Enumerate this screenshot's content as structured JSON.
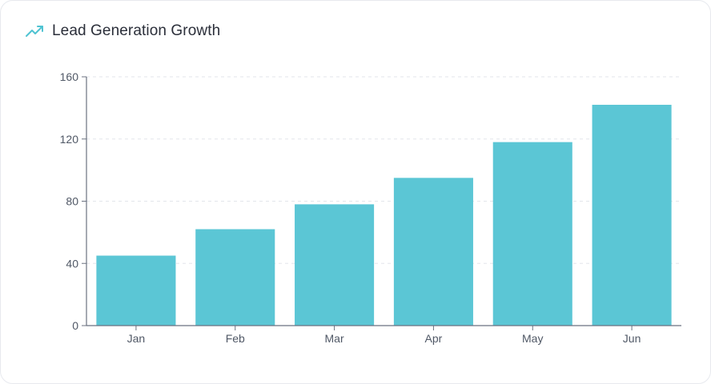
{
  "card": {
    "title": "Lead Generation Growth",
    "icon": "trending-up-icon"
  },
  "colors": {
    "bar": "#5bc6d5",
    "accent_icon": "#4fc3d2",
    "axis": "#6b7280",
    "grid": "#e3e6eb",
    "text": "#2b2f3a"
  },
  "chart_data": {
    "type": "bar",
    "title": "Lead Generation Growth",
    "categories": [
      "Jan",
      "Feb",
      "Mar",
      "Apr",
      "May",
      "Jun"
    ],
    "values": [
      45,
      62,
      78,
      95,
      118,
      142
    ],
    "yticks": [
      0,
      40,
      80,
      120,
      160
    ],
    "ylim": [
      0,
      160
    ],
    "grid": "horizontal-dashed",
    "legend": "none",
    "xlabel": "",
    "ylabel": ""
  }
}
